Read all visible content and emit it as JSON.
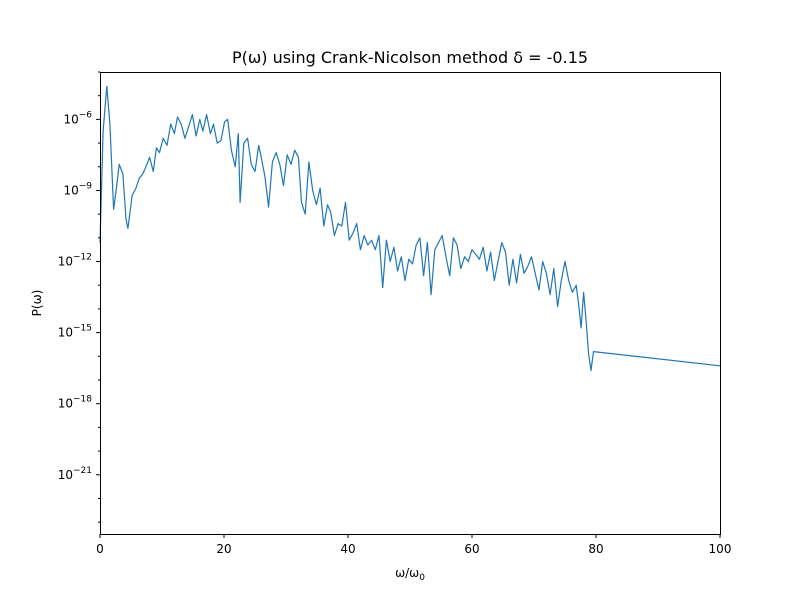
{
  "chart_data": {
    "type": "line",
    "title": "P(ω) using Crank-Nicolson method δ = -0.15",
    "xlabel": "ω/ω",
    "xlabel_sub": "0",
    "ylabel": "P(ω)",
    "xlim": [
      0,
      100
    ],
    "ylim_log10": [
      -23.5,
      -4.0
    ],
    "yscale": "log",
    "grid": false,
    "x_ticks": [
      {
        "value": 0,
        "label": "0"
      },
      {
        "value": 20,
        "label": "20"
      },
      {
        "value": 40,
        "label": "40"
      },
      {
        "value": 60,
        "label": "60"
      },
      {
        "value": 80,
        "label": "80"
      },
      {
        "value": 100,
        "label": "100"
      }
    ],
    "y_ticks": [
      {
        "exp": -6,
        "label": "10",
        "sup": "−6"
      },
      {
        "exp": -9,
        "label": "10",
        "sup": "−9"
      },
      {
        "exp": -12,
        "label": "10",
        "sup": "−12"
      },
      {
        "exp": -15,
        "label": "10",
        "sup": "−15"
      },
      {
        "exp": -18,
        "label": "10",
        "sup": "−18"
      },
      {
        "exp": -21,
        "label": "10",
        "sup": "−21"
      }
    ],
    "series": [
      {
        "color": "#1f77b4",
        "x": [
          0,
          0.5,
          1.1,
          1.6,
          2.2,
          2.6,
          3.1,
          3.7,
          4.2,
          4.5,
          5.2,
          5.8,
          6.3,
          6.9,
          7.4,
          8.0,
          8.6,
          9.1,
          9.6,
          10.2,
          10.8,
          11.4,
          12.0,
          12.5,
          13.1,
          13.7,
          14.3,
          14.9,
          15.5,
          16.1,
          16.6,
          17.2,
          17.8,
          18.3,
          18.9,
          19.5,
          20.1,
          20.6,
          21.2,
          21.8,
          22.3,
          22.6,
          23.2,
          23.8,
          24.4,
          25.0,
          25.6,
          26.0,
          26.6,
          27.2,
          27.8,
          28.4,
          29.0,
          29.6,
          30.2,
          30.8,
          31.4,
          32.0,
          32.5,
          33.1,
          33.7,
          34.3,
          34.9,
          35.5,
          36.1,
          36.7,
          37.2,
          37.8,
          38.4,
          39.0,
          39.6,
          40.2,
          40.8,
          41.4,
          42.0,
          42.6,
          43.2,
          43.8,
          44.4,
          45.0,
          45.6,
          46.2,
          46.8,
          47.4,
          48.0,
          48.6,
          49.2,
          49.8,
          50.4,
          51.0,
          51.6,
          52.2,
          52.8,
          53.4,
          54.0,
          54.6,
          55.2,
          55.8,
          56.4,
          57.0,
          57.6,
          58.2,
          58.8,
          59.4,
          60.0,
          60.6,
          61.2,
          61.8,
          62.4,
          63.0,
          63.6,
          64.2,
          64.8,
          65.4,
          66.0,
          66.6,
          67.2,
          67.8,
          68.4,
          69.0,
          69.6,
          70.2,
          70.8,
          71.4,
          72.0,
          72.6,
          73.2,
          73.8,
          74.4,
          75.0,
          75.6,
          76.2,
          76.8,
          77.2,
          77.6,
          78.0,
          78.4,
          78.8,
          79.2,
          79.6,
          100
        ],
        "log10y": [
          -11.2,
          -6.5,
          -4.6,
          -6.2,
          -9.8,
          -9.0,
          -7.9,
          -8.3,
          -10.2,
          -10.6,
          -9.2,
          -8.9,
          -8.5,
          -8.3,
          -8.0,
          -7.6,
          -8.2,
          -7.2,
          -7.4,
          -6.8,
          -7.1,
          -6.2,
          -6.6,
          -5.9,
          -6.2,
          -6.8,
          -6.3,
          -5.8,
          -6.7,
          -6.0,
          -6.5,
          -5.8,
          -6.6,
          -6.2,
          -7.0,
          -6.9,
          -6.1,
          -6.0,
          -7.3,
          -8.0,
          -6.6,
          -9.5,
          -7.0,
          -6.8,
          -7.9,
          -8.2,
          -7.1,
          -7.6,
          -8.4,
          -9.7,
          -7.8,
          -7.4,
          -7.9,
          -8.8,
          -7.5,
          -7.9,
          -7.3,
          -7.6,
          -9.5,
          -10.0,
          -7.8,
          -9.0,
          -9.6,
          -8.9,
          -10.5,
          -9.6,
          -9.9,
          -10.9,
          -10.4,
          -10.5,
          -9.5,
          -11.1,
          -10.8,
          -10.4,
          -11.5,
          -10.9,
          -11.3,
          -11.1,
          -11.5,
          -10.9,
          -13.1,
          -11.1,
          -12.0,
          -11.4,
          -12.4,
          -11.8,
          -12.8,
          -11.9,
          -12.1,
          -11.3,
          -11.0,
          -12.6,
          -11.2,
          -13.4,
          -11.5,
          -11.2,
          -10.9,
          -11.8,
          -12.6,
          -11.0,
          -11.3,
          -12.3,
          -11.8,
          -12.0,
          -11.5,
          -11.7,
          -11.9,
          -11.4,
          -12.4,
          -11.6,
          -12.8,
          -12.0,
          -11.2,
          -11.6,
          -13.0,
          -11.9,
          -12.9,
          -11.7,
          -12.5,
          -12.2,
          -11.8,
          -12.5,
          -13.2,
          -12.0,
          -12.5,
          -13.4,
          -12.3,
          -13.9,
          -12.8,
          -12.0,
          -12.8,
          -13.3,
          -13.0,
          -13.8,
          -14.8,
          -13.3,
          -14.5,
          -15.9,
          -16.6,
          -15.8,
          -16.4,
          -16.1,
          -16.3,
          -16.2,
          -16.6
        ]
      }
    ]
  }
}
